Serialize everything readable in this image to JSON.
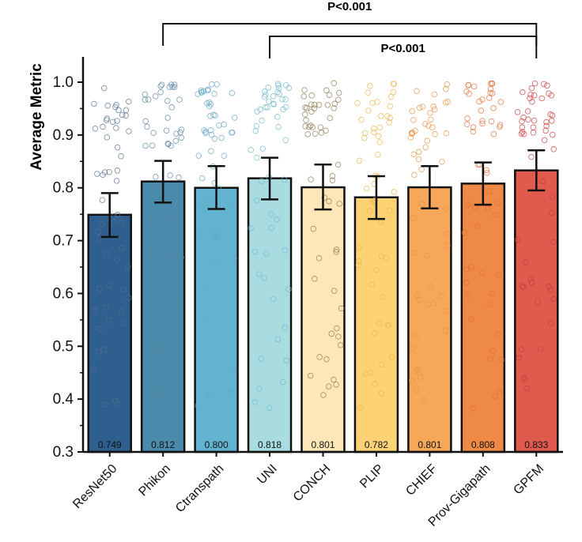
{
  "chart_data": {
    "type": "bar",
    "ylabel": "Average Metric",
    "ylim": [
      0.3,
      1.05
    ],
    "yticks": [
      "0.3",
      "0.4",
      "0.5",
      "0.6",
      "0.7",
      "0.8",
      "0.9",
      "1.0"
    ],
    "categories": [
      "ResNet50",
      "Phikon",
      "Ctranspath",
      "UNI",
      "CONCH",
      "PLIP",
      "CHIEF",
      "Prov-Gigapath",
      "GPFM"
    ],
    "values": [
      0.749,
      0.812,
      0.8,
      0.818,
      0.801,
      0.782,
      0.801,
      0.808,
      0.833
    ],
    "value_labels": [
      "0.749",
      "0.812",
      "0.800",
      "0.818",
      "0.801",
      "0.782",
      "0.801",
      "0.808",
      "0.833"
    ],
    "error_low": [
      0.707,
      0.772,
      0.76,
      0.778,
      0.759,
      0.741,
      0.761,
      0.768,
      0.795
    ],
    "error_high": [
      0.79,
      0.851,
      0.841,
      0.857,
      0.844,
      0.822,
      0.841,
      0.848,
      0.871
    ],
    "colors": [
      "#2f5f8e",
      "#4a8bab",
      "#62b3d0",
      "#a8dce0",
      "#fde7b8",
      "#fdd275",
      "#f7a75a",
      "#ee8a45",
      "#e05a4e"
    ],
    "point_colors": [
      "#56708f",
      "#5b86a0",
      "#62a5c3",
      "#6fb8c9",
      "#8a7a4f",
      "#e8b54a",
      "#e69345",
      "#e06e3a",
      "#c83a3a"
    ],
    "comparisons": [
      {
        "from": "Phikon",
        "to": "GPFM",
        "label": "P<0.001"
      },
      {
        "from": "UNI",
        "to": "GPFM",
        "label": "P<0.001"
      }
    ]
  }
}
